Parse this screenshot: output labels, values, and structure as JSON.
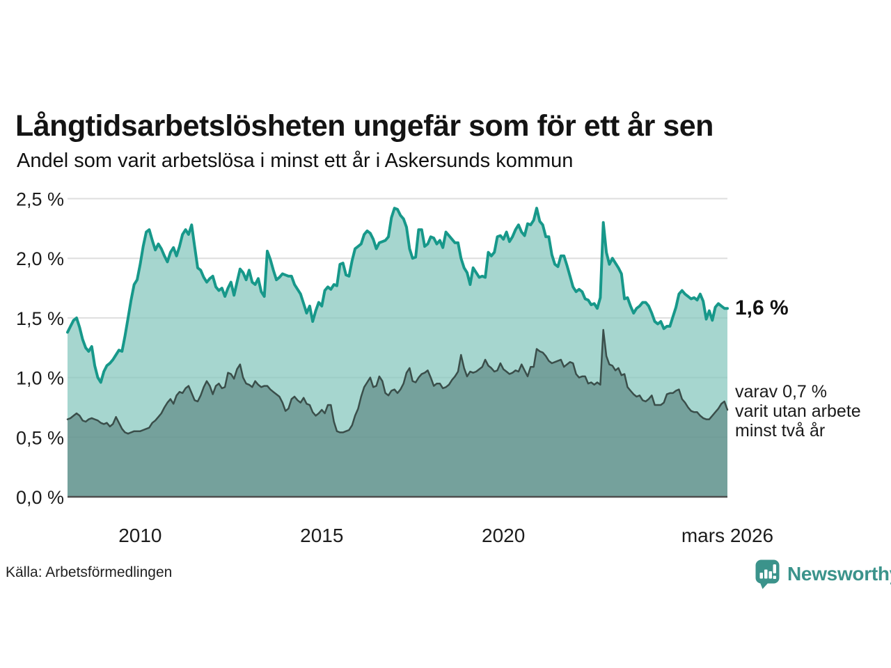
{
  "header": {
    "title": "Långtidsarbetslösheten ungefär som för ett år sen",
    "subtitle": "Andel som varit arbetslösa i minst ett år i Askersunds kommun"
  },
  "annotations": {
    "latest": "1,6 %",
    "breakdown": "varav 0,7 %\nvarit utan arbete\nminst två år"
  },
  "footer": {
    "source": "Källa: Arbetsförmedlingen",
    "brand": "Newsworthy"
  },
  "colors": {
    "accent_teal": "#17988a",
    "dark_line": "#3a4e4a",
    "light_fill": "#a6d6cf",
    "dark_fill": "#75a39c",
    "brand_teal": "#3b938b",
    "gridline": "#dedede",
    "axis_line": "#4d4d4d"
  },
  "chart_data": {
    "type": "area",
    "title": "Långtidsarbetslösheten ungefär som för ett år sen",
    "subtitle": "Andel som varit arbetslösa i minst ett år i Askersunds kommun",
    "unit": "%",
    "x_unit": "decimal_year_monthly",
    "x_range": [
      2008.0,
      2026.167
    ],
    "ylim": [
      0,
      2.5
    ],
    "grid": true,
    "legend_position": "right-annotations",
    "xticks": [
      {
        "value": 2010,
        "label": "2010"
      },
      {
        "value": 2015,
        "label": "2015"
      },
      {
        "value": 2020,
        "label": "2020"
      },
      {
        "value": 2026.167,
        "label": "mars 2026"
      }
    ],
    "yticks": [
      {
        "value": 0.0,
        "label": "0,0 %"
      },
      {
        "value": 0.5,
        "label": "0,5 %"
      },
      {
        "value": 1.0,
        "label": "1,0 %"
      },
      {
        "value": 1.5,
        "label": "1,5 %"
      },
      {
        "value": 2.0,
        "label": "2,0 %"
      },
      {
        "value": 2.5,
        "label": "2,5 %"
      }
    ],
    "series": [
      {
        "name": "Andel som varit arbetslösa i minst ett år",
        "latest_label": "1,6 %",
        "line_color": "#17988a",
        "line_width": 4,
        "fill": "#83c6bc",
        "fill_opacity": 0.72,
        "values": [
          1.38,
          1.43,
          1.48,
          1.5,
          1.42,
          1.32,
          1.25,
          1.22,
          1.26,
          1.1,
          1.0,
          0.96,
          1.05,
          1.1,
          1.12,
          1.15,
          1.19,
          1.23,
          1.22,
          1.35,
          1.5,
          1.65,
          1.78,
          1.82,
          1.95,
          2.1,
          2.22,
          2.24,
          2.15,
          2.07,
          2.12,
          2.08,
          2.02,
          1.97,
          2.05,
          2.09,
          2.02,
          2.1,
          2.2,
          2.24,
          2.2,
          2.28,
          2.1,
          1.92,
          1.9,
          1.84,
          1.8,
          1.83,
          1.85,
          1.76,
          1.73,
          1.75,
          1.68,
          1.75,
          1.8,
          1.69,
          1.8,
          1.91,
          1.88,
          1.82,
          1.9,
          1.8,
          1.78,
          1.83,
          1.72,
          1.68,
          2.06,
          1.99,
          1.9,
          1.82,
          1.84,
          1.87,
          1.86,
          1.85,
          1.85,
          1.78,
          1.74,
          1.7,
          1.62,
          1.54,
          1.6,
          1.47,
          1.56,
          1.63,
          1.6,
          1.73,
          1.76,
          1.74,
          1.78,
          1.77,
          1.95,
          1.96,
          1.86,
          1.85,
          1.98,
          2.08,
          2.1,
          2.12,
          2.2,
          2.23,
          2.21,
          2.16,
          2.08,
          2.13,
          2.14,
          2.15,
          2.18,
          2.34,
          2.42,
          2.41,
          2.36,
          2.33,
          2.26,
          2.08,
          2.0,
          2.01,
          2.24,
          2.24,
          2.1,
          2.12,
          2.18,
          2.17,
          2.12,
          2.15,
          2.09,
          2.22,
          2.19,
          2.16,
          2.13,
          2.13,
          2.0,
          1.92,
          1.88,
          1.78,
          1.92,
          1.88,
          1.84,
          1.85,
          1.84,
          2.05,
          2.02,
          2.05,
          2.18,
          2.19,
          2.16,
          2.22,
          2.14,
          2.18,
          2.24,
          2.28,
          2.22,
          2.19,
          2.29,
          2.28,
          2.32,
          2.42,
          2.31,
          2.28,
          2.18,
          2.18,
          2.03,
          1.95,
          1.93,
          2.02,
          2.02,
          1.94,
          1.85,
          1.76,
          1.72,
          1.74,
          1.72,
          1.66,
          1.65,
          1.61,
          1.62,
          1.58,
          1.67,
          2.3,
          2.05,
          1.95,
          2.0,
          1.96,
          1.92,
          1.87,
          1.66,
          1.67,
          1.6,
          1.54,
          1.58,
          1.6,
          1.63,
          1.63,
          1.6,
          1.54,
          1.47,
          1.45,
          1.47,
          1.41,
          1.43,
          1.43,
          1.51,
          1.59,
          1.7,
          1.73,
          1.7,
          1.68,
          1.66,
          1.67,
          1.65,
          1.7,
          1.64,
          1.49,
          1.56,
          1.48,
          1.59,
          1.62,
          1.6,
          1.58,
          1.58
        ]
      },
      {
        "name": "varav utan arbete minst två år",
        "latest_label": "0,7 %",
        "line_color": "#3a4e4a",
        "line_width": 2.5,
        "fill": "#4d7772",
        "fill_opacity": 0.55,
        "values": [
          0.65,
          0.66,
          0.68,
          0.7,
          0.68,
          0.64,
          0.63,
          0.65,
          0.66,
          0.65,
          0.64,
          0.62,
          0.61,
          0.62,
          0.59,
          0.61,
          0.67,
          0.62,
          0.57,
          0.54,
          0.53,
          0.54,
          0.55,
          0.55,
          0.55,
          0.56,
          0.57,
          0.58,
          0.62,
          0.64,
          0.67,
          0.7,
          0.75,
          0.79,
          0.82,
          0.78,
          0.85,
          0.88,
          0.87,
          0.91,
          0.93,
          0.87,
          0.81,
          0.8,
          0.85,
          0.92,
          0.97,
          0.93,
          0.86,
          0.93,
          0.95,
          0.91,
          0.92,
          1.04,
          1.03,
          0.99,
          1.07,
          1.11,
          1.0,
          0.95,
          0.94,
          0.92,
          0.97,
          0.94,
          0.92,
          0.93,
          0.93,
          0.9,
          0.88,
          0.86,
          0.84,
          0.79,
          0.72,
          0.74,
          0.82,
          0.84,
          0.81,
          0.79,
          0.83,
          0.78,
          0.77,
          0.71,
          0.68,
          0.7,
          0.73,
          0.7,
          0.77,
          0.77,
          0.63,
          0.55,
          0.54,
          0.54,
          0.55,
          0.56,
          0.6,
          0.68,
          0.74,
          0.84,
          0.92,
          0.96,
          1.0,
          0.92,
          0.93,
          1.01,
          0.97,
          0.87,
          0.85,
          0.89,
          0.9,
          0.87,
          0.9,
          0.95,
          1.04,
          1.08,
          0.97,
          0.96,
          1.0,
          1.03,
          1.04,
          1.06,
          1.0,
          0.93,
          0.95,
          0.95,
          0.91,
          0.92,
          0.94,
          0.98,
          1.01,
          1.05,
          1.19,
          1.08,
          1.01,
          1.05,
          1.04,
          1.05,
          1.07,
          1.09,
          1.15,
          1.1,
          1.08,
          1.05,
          1.06,
          1.12,
          1.07,
          1.05,
          1.03,
          1.04,
          1.06,
          1.05,
          1.11,
          1.06,
          1.01,
          1.09,
          1.09,
          1.24,
          1.22,
          1.21,
          1.18,
          1.14,
          1.12,
          1.13,
          1.14,
          1.15,
          1.09,
          1.11,
          1.13,
          1.12,
          1.03,
          1.0,
          1.01,
          1.01,
          0.95,
          0.96,
          0.94,
          0.96,
          0.94,
          1.4,
          1.18,
          1.11,
          1.1,
          1.06,
          1.08,
          1.02,
          1.03,
          0.92,
          0.89,
          0.86,
          0.84,
          0.85,
          0.81,
          0.8,
          0.82,
          0.85,
          0.77,
          0.77,
          0.77,
          0.79,
          0.86,
          0.87,
          0.87,
          0.89,
          0.9,
          0.82,
          0.79,
          0.75,
          0.72,
          0.71,
          0.71,
          0.68,
          0.66,
          0.65,
          0.65,
          0.68,
          0.71,
          0.74,
          0.78,
          0.8,
          0.73
        ]
      }
    ]
  }
}
